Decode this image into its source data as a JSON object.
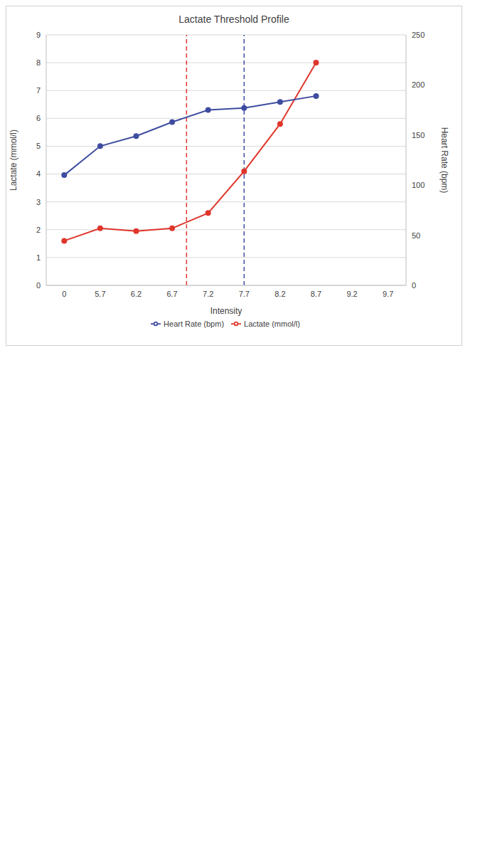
{
  "chart_data": {
    "type": "line",
    "title": "Lactate Threshold Profile",
    "x_label": "Intensity",
    "y_label": "Lactate (mmol/l)",
    "y2_label": "Heart Rate (bpm)",
    "categories": [
      "0",
      "5.7",
      "6.2",
      "6.7",
      "7.2",
      "7.7",
      "8.2",
      "8.7",
      "9.2",
      "9.7"
    ],
    "series": [
      {
        "name": "Lactate (mmol/l)",
        "color": "#e0362c",
        "marker": "circle",
        "line_style": "solid",
        "values": [
          1.6,
          2.05,
          1.95,
          2.05,
          2.6,
          4.1,
          5.8,
          8.0,
          null,
          null
        ]
      },
      {
        "name": "Heart Rate (bpm)",
        "color": "#3f4da0",
        "marker": "circle",
        "line_style": "solid",
        "axis": "y2",
        "values": [
          110,
          139,
          149,
          163,
          175,
          177,
          183,
          189,
          null,
          null
        ]
      }
    ],
    "ylim": [
      0,
      9
    ],
    "yticks": [
      0,
      1,
      2,
      3,
      4,
      5,
      6,
      7,
      8,
      9
    ],
    "y2lim": [
      0,
      250
    ],
    "y2ticks": [
      0,
      50,
      100,
      150,
      200,
      250
    ],
    "threshold_lines": [
      {
        "x": 6.9,
        "color": "#e0362c",
        "line_style": "dashed"
      },
      {
        "x": 7.7,
        "color": "#3f4da0",
        "line_style": "dashed"
      }
    ],
    "grid": true,
    "legend": "bottom"
  }
}
